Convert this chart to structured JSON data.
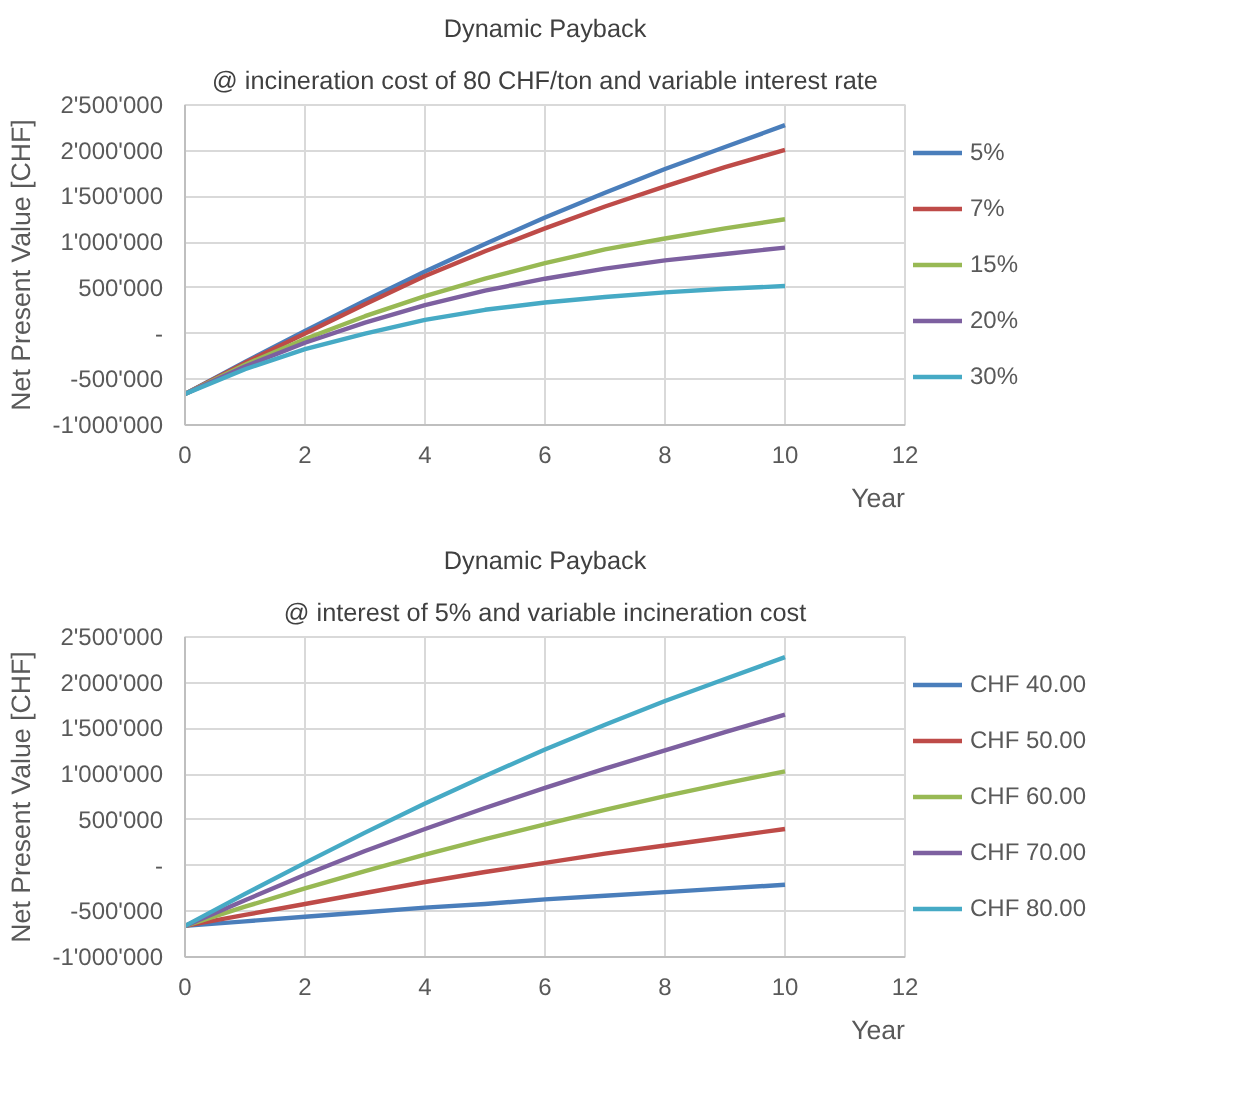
{
  "chart_data": [
    {
      "type": "line",
      "title": "Dynamic Payback",
      "subtitle": "@ incineration cost of 80 CHF/ton and variable interest rate",
      "xlabel": "Year",
      "ylabel": "Net Present Value [CHF]",
      "x": [
        0,
        1,
        2,
        3,
        4,
        5,
        6,
        7,
        8,
        9,
        10
      ],
      "xlim": [
        0,
        12
      ],
      "xticks": [
        0,
        2,
        4,
        6,
        8,
        10,
        12
      ],
      "ylim": [
        -1000000,
        2500000
      ],
      "yticks": [
        {
          "value": -1000000,
          "label": "-1'000'000"
        },
        {
          "value": -500000,
          "label": "-500'000"
        },
        {
          "value": 0,
          "label": "-"
        },
        {
          "value": 500000,
          "label": "500'000"
        },
        {
          "value": 1000000,
          "label": "1'000'000"
        },
        {
          "value": 1500000,
          "label": "1'500'000"
        },
        {
          "value": 2000000,
          "label": "2'000'000"
        },
        {
          "value": 2500000,
          "label": "2'500'000"
        }
      ],
      "grid": true,
      "legend": "right",
      "marker": "none",
      "line_style": "solid",
      "series": [
        {
          "name": "5%",
          "color": "#4a7ebb",
          "values": [
            -660000,
            -310000,
            30000,
            360000,
            680000,
            980000,
            1270000,
            1540000,
            1800000,
            2040000,
            2280000
          ]
        },
        {
          "name": "7%",
          "color": "#be4b48",
          "values": [
            -660000,
            -320000,
            0,
            320000,
            630000,
            900000,
            1150000,
            1390000,
            1610000,
            1820000,
            2010000
          ]
        },
        {
          "name": "15%",
          "color": "#98b954",
          "values": [
            -660000,
            -340000,
            -60000,
            190000,
            410000,
            600000,
            770000,
            920000,
            1040000,
            1150000,
            1250000
          ]
        },
        {
          "name": "20%",
          "color": "#7d60a0",
          "values": [
            -660000,
            -360000,
            -100000,
            120000,
            310000,
            470000,
            600000,
            710000,
            800000,
            870000,
            940000
          ]
        },
        {
          "name": "30%",
          "color": "#46aac5",
          "values": [
            -660000,
            -390000,
            -170000,
            0,
            150000,
            260000,
            340000,
            400000,
            450000,
            490000,
            520000
          ]
        }
      ]
    },
    {
      "type": "line",
      "title": "Dynamic Payback",
      "subtitle": "@ interest of 5% and variable incineration cost",
      "xlabel": "Year",
      "ylabel": "Net Present Value [CHF]",
      "x": [
        0,
        1,
        2,
        3,
        4,
        5,
        6,
        7,
        8,
        9,
        10
      ],
      "xlim": [
        0,
        12
      ],
      "xticks": [
        0,
        2,
        4,
        6,
        8,
        10,
        12
      ],
      "ylim": [
        -1000000,
        2500000
      ],
      "yticks": [
        {
          "value": -1000000,
          "label": "-1'000'000"
        },
        {
          "value": -500000,
          "label": "-500'000"
        },
        {
          "value": 0,
          "label": "-"
        },
        {
          "value": 500000,
          "label": "500'000"
        },
        {
          "value": 1000000,
          "label": "1'000'000"
        },
        {
          "value": 1500000,
          "label": "1'500'000"
        },
        {
          "value": 2000000,
          "label": "2'000'000"
        },
        {
          "value": 2500000,
          "label": "2'500'000"
        }
      ],
      "grid": true,
      "legend": "right",
      "marker": "none",
      "line_style": "solid",
      "series": [
        {
          "name": "CHF 40.00",
          "color": "#4a7ebb",
          "values": [
            -660000,
            -610000,
            -560000,
            -510000,
            -460000,
            -420000,
            -370000,
            -330000,
            -290000,
            -250000,
            -210000
          ]
        },
        {
          "name": "CHF 50.00",
          "color": "#be4b48",
          "values": [
            -660000,
            -540000,
            -420000,
            -300000,
            -180000,
            -70000,
            30000,
            130000,
            220000,
            310000,
            400000
          ]
        },
        {
          "name": "CHF 60.00",
          "color": "#98b954",
          "values": [
            -660000,
            -450000,
            -250000,
            -60000,
            120000,
            290000,
            450000,
            610000,
            760000,
            900000,
            1030000
          ]
        },
        {
          "name": "CHF 70.00",
          "color": "#7d60a0",
          "values": [
            -660000,
            -380000,
            -100000,
            160000,
            400000,
            630000,
            850000,
            1060000,
            1260000,
            1460000,
            1650000
          ]
        },
        {
          "name": "CHF 80.00",
          "color": "#46aac5",
          "values": [
            -660000,
            -310000,
            30000,
            360000,
            680000,
            980000,
            1270000,
            1540000,
            1800000,
            2040000,
            2280000
          ]
        }
      ]
    }
  ]
}
